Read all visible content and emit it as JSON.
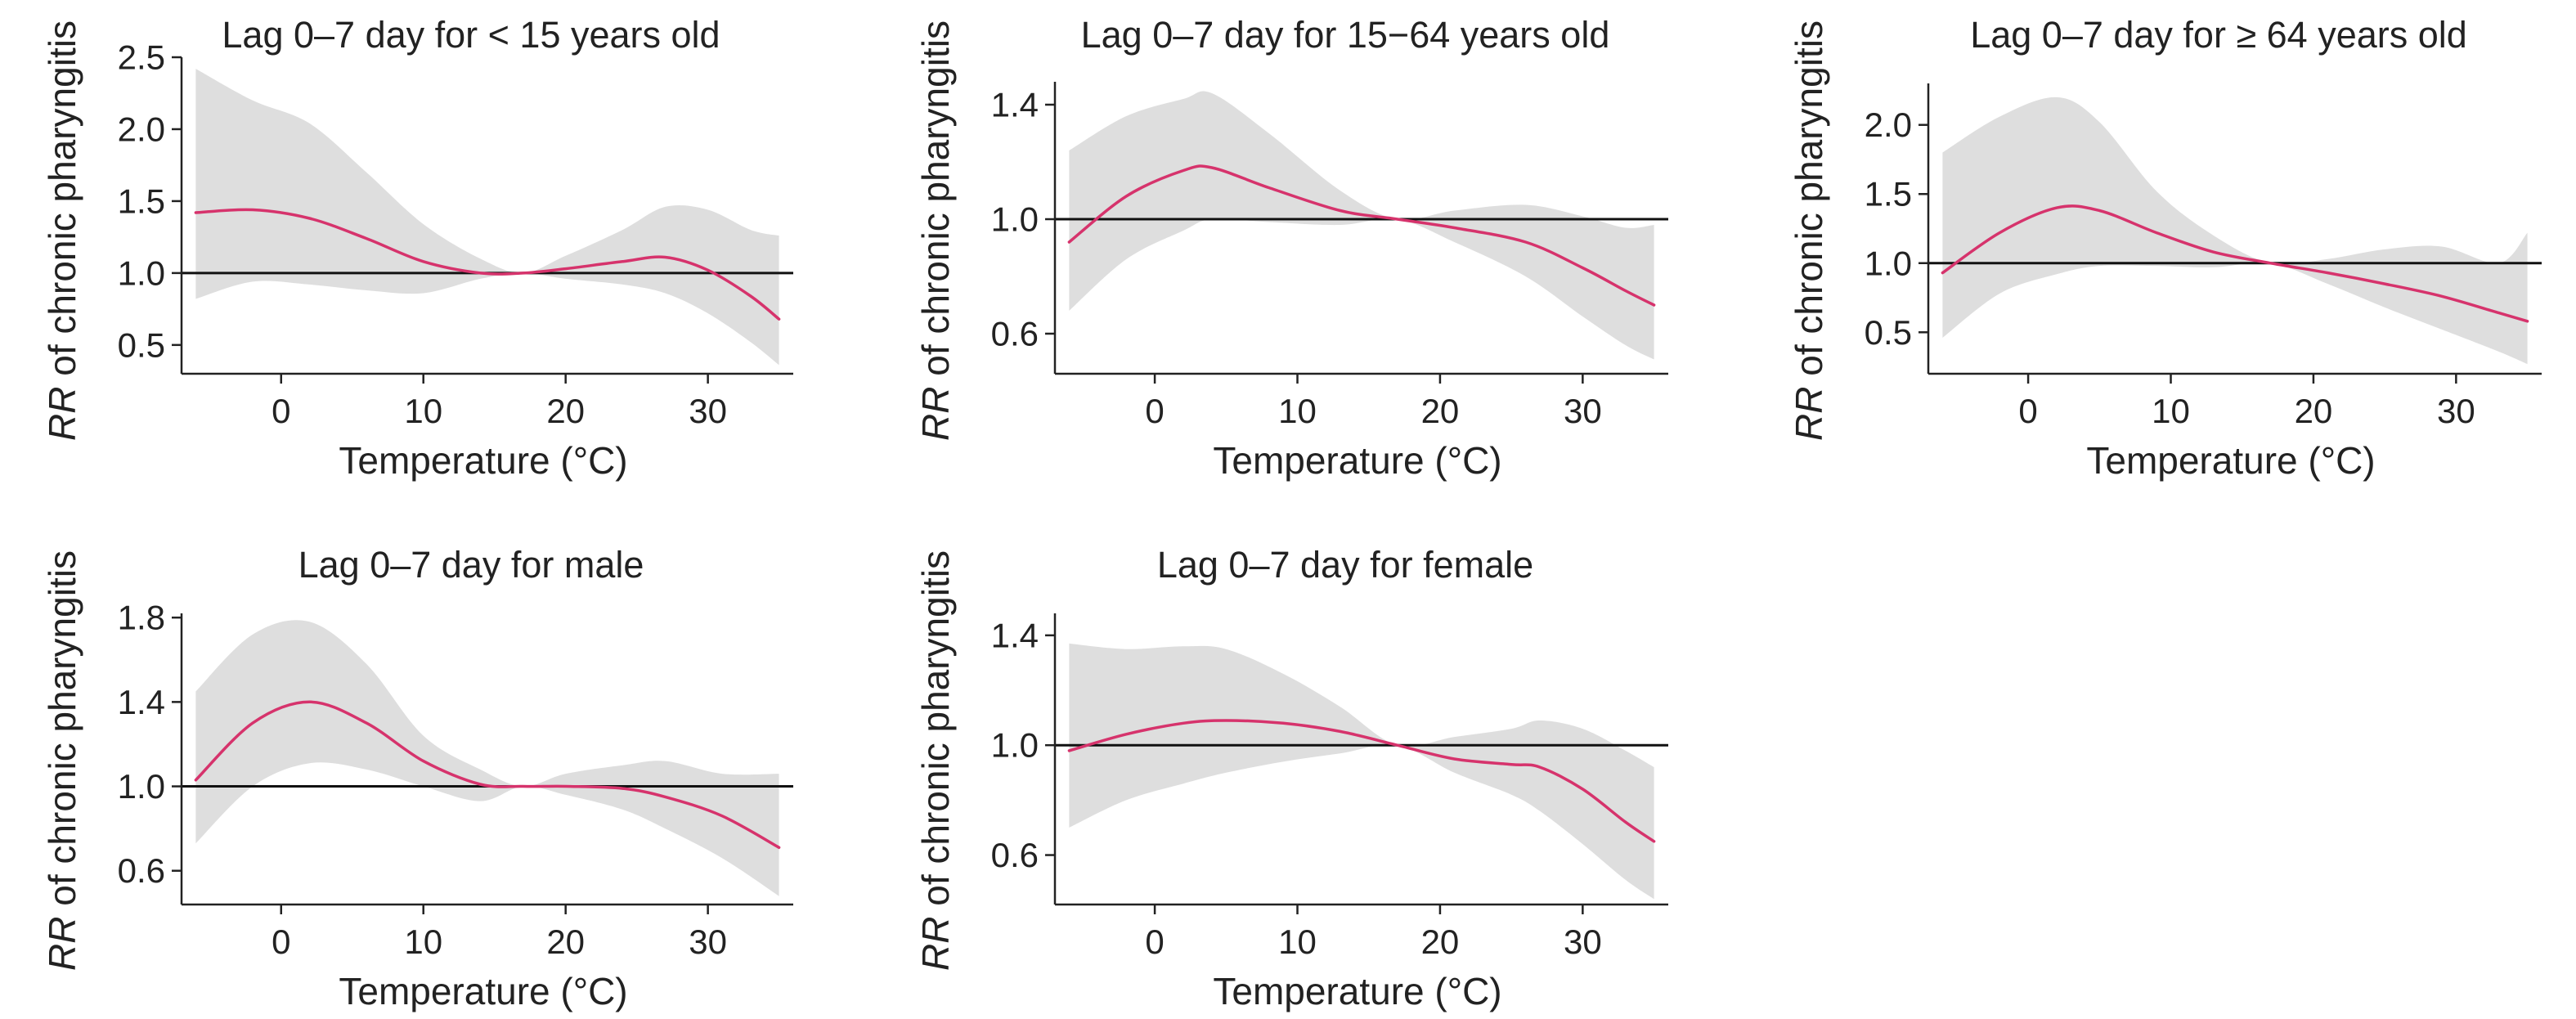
{
  "colors": {
    "rr_line": "#d6336c",
    "ci_band": "#dedede",
    "reference_line": "#111111"
  },
  "chart_data": [
    {
      "type": "line",
      "title": "Lag 0–7 day for < 15 years old",
      "xlabel": "Temperature (°C)",
      "ylabel_italic": "RR",
      "ylabel_rest": " of chronic pharyngitis",
      "xlim": [
        -7,
        36
      ],
      "ylim": [
        0.3,
        2.5
      ],
      "xticks": [
        0,
        10,
        20,
        30
      ],
      "yticks": [
        0.5,
        1.0,
        1.5,
        2.0,
        2.5
      ],
      "ytick_labels": [
        "0.5",
        "1.0",
        "1.5",
        "2.0",
        "2.5"
      ],
      "reference_y": 1.0,
      "x": [
        -6,
        -2,
        2,
        6,
        10,
        14,
        17,
        20,
        24,
        27,
        30,
        33,
        35
      ],
      "rr": [
        1.42,
        1.44,
        1.38,
        1.24,
        1.08,
        1.0,
        1.0,
        1.03,
        1.08,
        1.11,
        1.02,
        0.84,
        0.68
      ],
      "ci_lower": [
        0.82,
        0.94,
        0.92,
        0.88,
        0.86,
        0.96,
        1.0,
        0.96,
        0.92,
        0.86,
        0.72,
        0.52,
        0.36
      ],
      "ci_upper": [
        2.42,
        2.2,
        2.04,
        1.7,
        1.34,
        1.1,
        1.0,
        1.12,
        1.3,
        1.46,
        1.44,
        1.3,
        1.26
      ]
    },
    {
      "type": "line",
      "title": "Lag 0–7 day for 15−64 years old",
      "xlabel": "Temperature (°C)",
      "ylabel_italic": "RR",
      "ylabel_rest": " of chronic pharyngitis",
      "xlim": [
        -7,
        36
      ],
      "ylim": [
        0.46,
        1.48
      ],
      "xticks": [
        0,
        10,
        20,
        30
      ],
      "yticks": [
        0.6,
        1.0,
        1.4
      ],
      "ytick_labels": [
        "0.6",
        "1.0",
        "1.4"
      ],
      "reference_y": 1.0,
      "x": [
        -6,
        -2,
        2,
        4,
        8,
        13,
        17,
        21,
        26,
        30,
        33,
        35
      ],
      "rr": [
        0.92,
        1.08,
        1.17,
        1.18,
        1.11,
        1.03,
        1.0,
        0.97,
        0.92,
        0.83,
        0.75,
        0.7
      ],
      "ci_lower": [
        0.68,
        0.86,
        0.96,
        1.0,
        0.99,
        0.98,
        1.0,
        0.92,
        0.8,
        0.66,
        0.56,
        0.51
      ],
      "ci_upper": [
        1.24,
        1.36,
        1.42,
        1.44,
        1.3,
        1.1,
        1.0,
        1.03,
        1.05,
        1.01,
        0.97,
        0.98
      ]
    },
    {
      "type": "line",
      "title": "Lag 0–7 day for ≥ 64 years old",
      "xlabel": "Temperature (°C)",
      "ylabel_italic": "RR",
      "ylabel_rest": " of chronic pharyngitis",
      "xlim": [
        -7,
        36
      ],
      "ylim": [
        0.2,
        2.3
      ],
      "xticks": [
        0,
        10,
        20,
        30
      ],
      "yticks": [
        0.5,
        1.0,
        1.5,
        2.0
      ],
      "ytick_labels": [
        "0.5",
        "1.0",
        "1.5",
        "2.0"
      ],
      "reference_y": 1.0,
      "x": [
        -6,
        -2,
        2,
        5,
        9,
        13,
        17,
        21,
        25,
        29,
        33,
        35
      ],
      "rr": [
        0.93,
        1.22,
        1.4,
        1.38,
        1.22,
        1.08,
        1.0,
        0.93,
        0.85,
        0.76,
        0.64,
        0.58
      ],
      "ci_lower": [
        0.46,
        0.78,
        0.92,
        0.98,
        0.98,
        0.97,
        1.0,
        0.85,
        0.68,
        0.52,
        0.36,
        0.27
      ],
      "ci_upper": [
        1.8,
        2.06,
        2.2,
        2.02,
        1.52,
        1.2,
        1.0,
        1.03,
        1.1,
        1.12,
        1.0,
        1.22
      ]
    },
    {
      "type": "line",
      "title": "Lag 0–7 day for male",
      "xlabel": "Temperature (°C)",
      "ylabel_italic": "RR",
      "ylabel_rest": " of chronic pharyngitis",
      "xlim": [
        -7,
        36
      ],
      "ylim": [
        0.44,
        1.82
      ],
      "xticks": [
        0,
        10,
        20,
        30
      ],
      "yticks": [
        0.6,
        1.0,
        1.4,
        1.8
      ],
      "ytick_labels": [
        "0.6",
        "1.0",
        "1.4",
        "1.8"
      ],
      "reference_y": 1.0,
      "x": [
        -6,
        -2,
        2,
        6,
        10,
        14,
        17,
        20,
        24,
        27,
        31,
        35
      ],
      "rr": [
        1.03,
        1.3,
        1.4,
        1.3,
        1.12,
        1.01,
        1.0,
        1.0,
        0.99,
        0.95,
        0.86,
        0.71
      ],
      "ci_lower": [
        0.73,
        1.0,
        1.11,
        1.08,
        1.0,
        0.93,
        1.0,
        0.96,
        0.89,
        0.8,
        0.66,
        0.48
      ],
      "ci_upper": [
        1.45,
        1.72,
        1.78,
        1.58,
        1.24,
        1.08,
        1.0,
        1.06,
        1.1,
        1.12,
        1.06,
        1.06
      ]
    },
    {
      "type": "line",
      "title": "Lag 0–7 day for female",
      "xlabel": "Temperature (°C)",
      "ylabel_italic": "RR",
      "ylabel_rest": " of chronic pharyngitis",
      "xlim": [
        -7,
        36
      ],
      "ylim": [
        0.42,
        1.48
      ],
      "xticks": [
        0,
        10,
        20,
        30
      ],
      "yticks": [
        0.6,
        1.0,
        1.4
      ],
      "ytick_labels": [
        "0.6",
        "1.0",
        "1.4"
      ],
      "reference_y": 1.0,
      "x": [
        -6,
        -2,
        2,
        5,
        9,
        13,
        17,
        21,
        25,
        27,
        30,
        33,
        35
      ],
      "rr": [
        0.98,
        1.04,
        1.08,
        1.09,
        1.08,
        1.05,
        1.0,
        0.95,
        0.93,
        0.92,
        0.84,
        0.72,
        0.65
      ],
      "ci_lower": [
        0.7,
        0.8,
        0.86,
        0.9,
        0.94,
        0.97,
        1.0,
        0.9,
        0.82,
        0.76,
        0.64,
        0.51,
        0.44
      ],
      "ci_upper": [
        1.37,
        1.35,
        1.36,
        1.35,
        1.26,
        1.14,
        1.0,
        1.03,
        1.06,
        1.09,
        1.06,
        0.98,
        0.92
      ]
    }
  ]
}
